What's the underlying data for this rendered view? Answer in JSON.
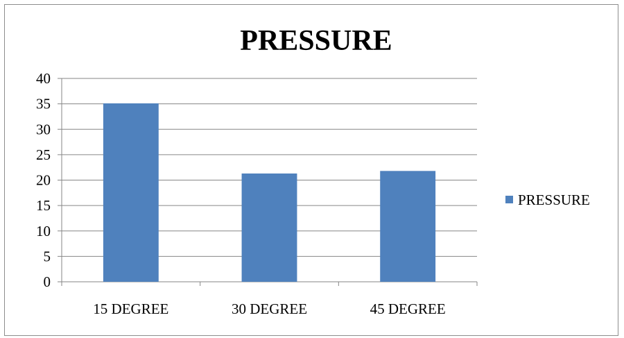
{
  "chart_data": {
    "type": "bar",
    "title": "PRESSURE",
    "categories": [
      "15 DEGREE",
      "30 DEGREE",
      "45 DEGREE"
    ],
    "series": [
      {
        "name": "PRESSURE",
        "values": [
          35.1,
          21.3,
          21.8
        ],
        "color": "#4f81bd"
      }
    ],
    "xlabel": "",
    "ylabel": "",
    "ylim": [
      0,
      40
    ],
    "yticks": [
      "0",
      "5",
      "10",
      "15",
      "20",
      "25",
      "30",
      "35",
      "40"
    ],
    "grid": true,
    "legend": "right"
  }
}
